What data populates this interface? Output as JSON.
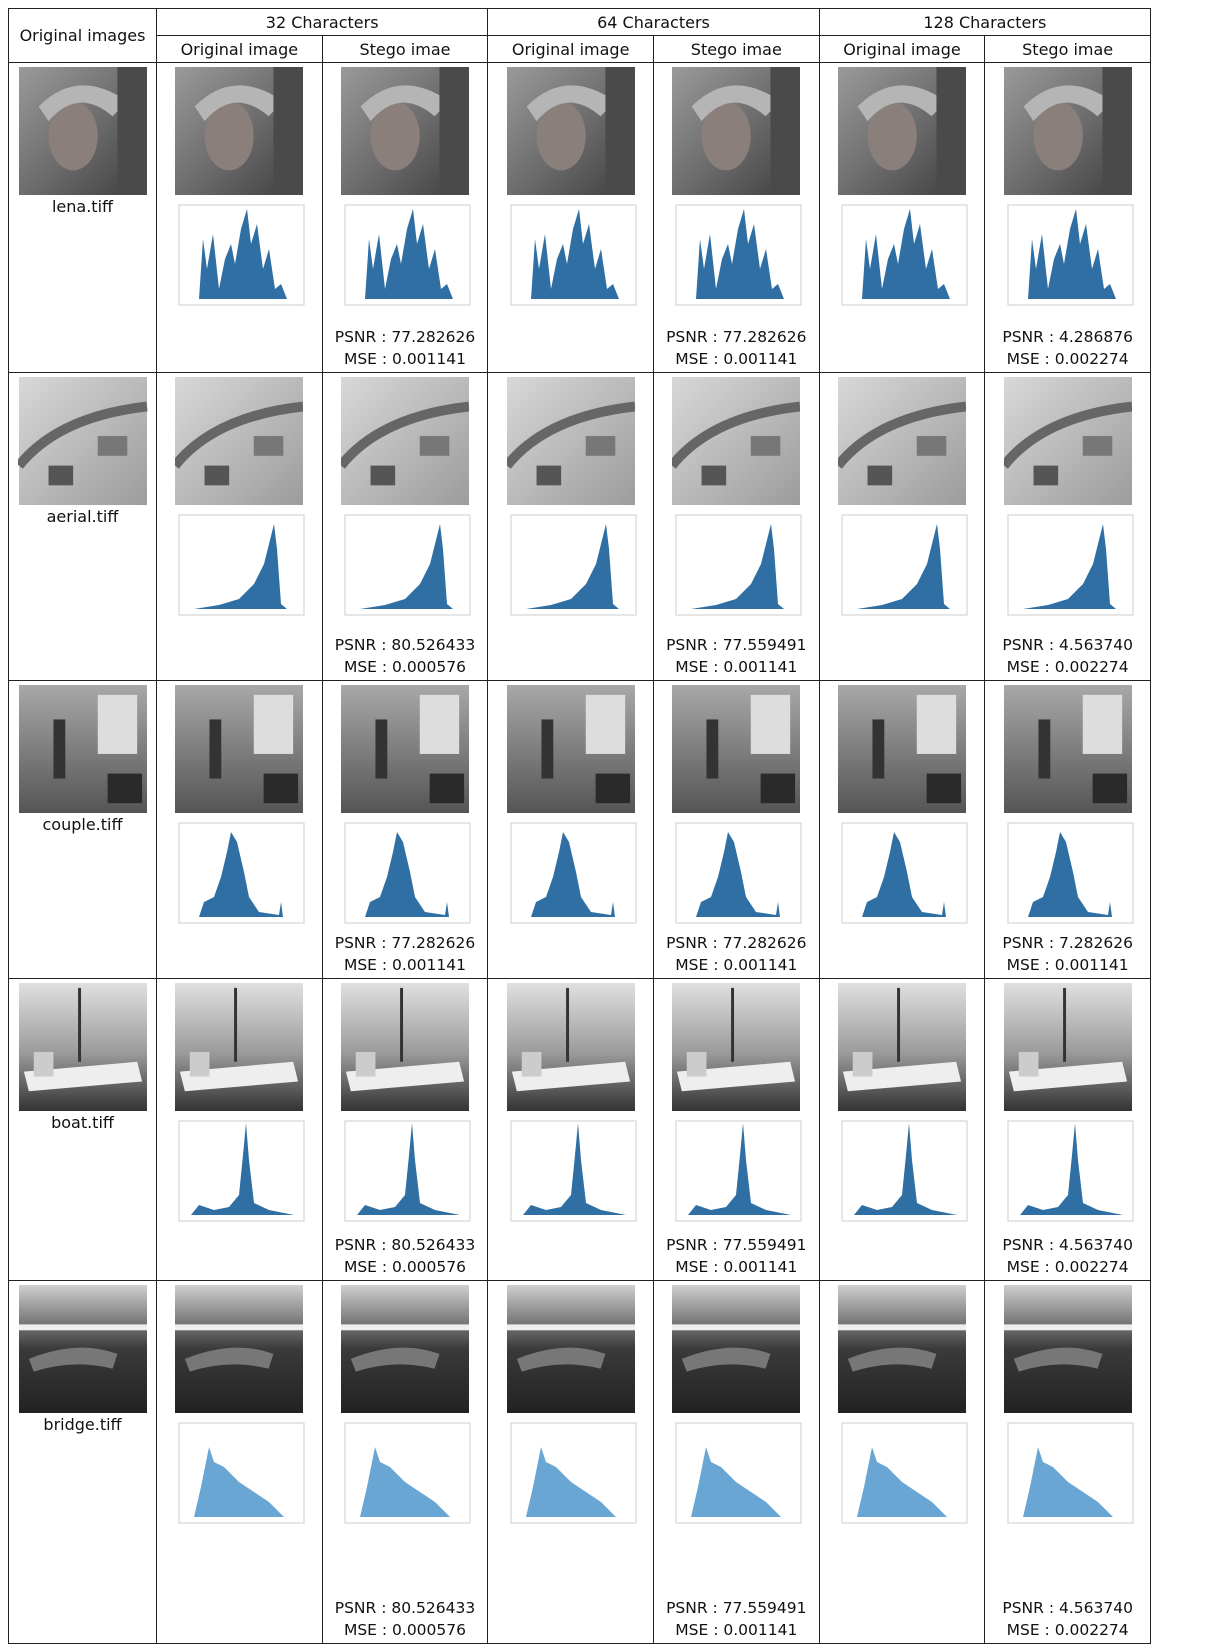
{
  "header": {
    "row1": [
      "Original images",
      "32 Characters",
      "64 Characters",
      "128 Characters"
    ],
    "row2": [
      "Original image",
      "Stego imae",
      "Original image",
      "Stego imae",
      "Original image",
      "Stego imae"
    ]
  },
  "rows": [
    {
      "name": "lena.tiff",
      "results": [
        {
          "psnr": "PSNR : 77.282626",
          "mse": "MSE : 0.001141"
        },
        {
          "psnr": "PSNR : 77.282626",
          "mse": "MSE : 0.001141"
        },
        {
          "psnr": "PSNR : 4.286876",
          "mse": "MSE : 0.002274"
        }
      ]
    },
    {
      "name": "aerial.tiff",
      "results": [
        {
          "psnr": "PSNR : 80.526433",
          "mse": "MSE : 0.000576"
        },
        {
          "psnr": "PSNR : 77.559491",
          "mse": "MSE : 0.001141"
        },
        {
          "psnr": "PSNR : 4.563740",
          "mse": "MSE : 0.002274"
        }
      ]
    },
    {
      "name": "couple.tiff",
      "results": [
        {
          "psnr": "PSNR : 77.282626",
          "mse": "MSE : 0.001141"
        },
        {
          "psnr": "PSNR : 77.282626",
          "mse": "MSE : 0.001141"
        },
        {
          "psnr": "PSNR : 7.282626",
          "mse": "MSE : 0.001141"
        }
      ]
    },
    {
      "name": "boat.tiff",
      "results": [
        {
          "psnr": "PSNR : 80.526433",
          "mse": "MSE : 0.000576"
        },
        {
          "psnr": "PSNR : 77.559491",
          "mse": "MSE : 0.001141"
        },
        {
          "psnr": "PSNR : 4.563740",
          "mse": "MSE : 0.002274"
        }
      ]
    },
    {
      "name": "bridge.tiff",
      "results": [
        {
          "psnr": "PSNR : 80.526433",
          "mse": "MSE : 0.000576"
        },
        {
          "psnr": "PSNR : 77.559491",
          "mse": "MSE : 0.001141"
        },
        {
          "psnr": "PSNR : 4.563740",
          "mse": "MSE : 0.002274"
        }
      ]
    }
  ]
}
